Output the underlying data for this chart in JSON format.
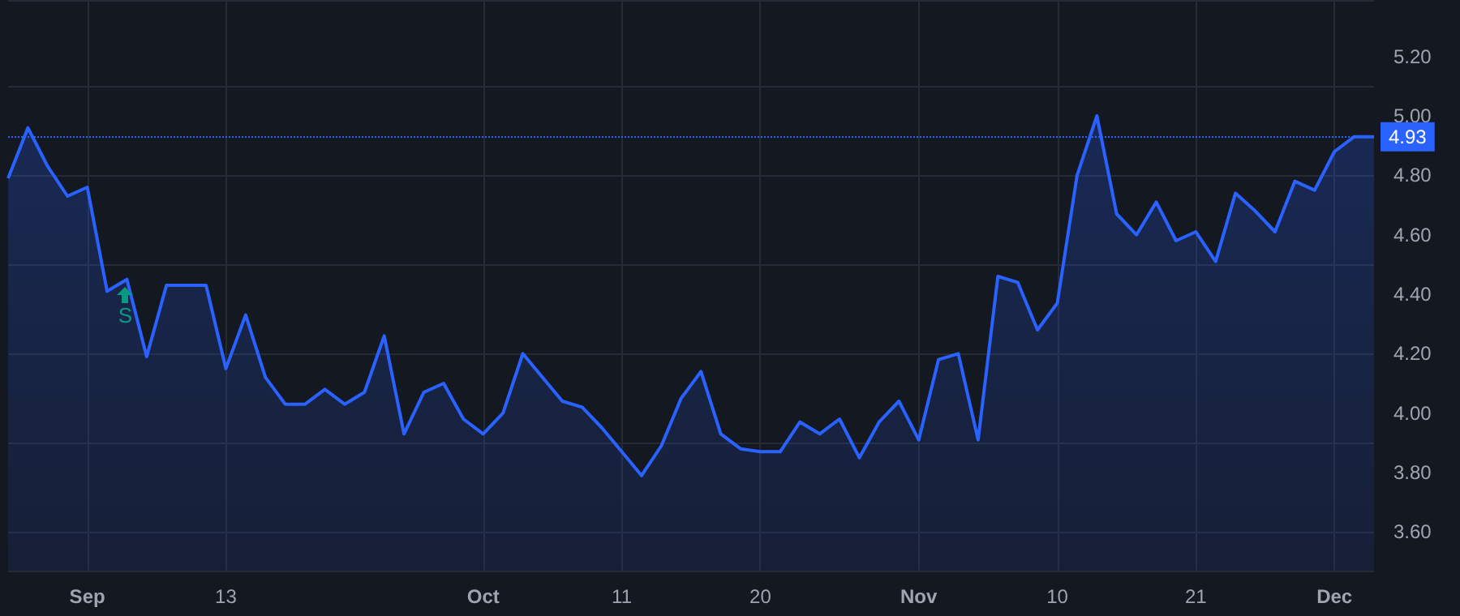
{
  "chart_data": {
    "type": "area",
    "categories": [
      null,
      null,
      null,
      null,
      "Sep",
      null,
      null,
      null,
      null,
      null,
      null,
      "13",
      null,
      null,
      null,
      null,
      null,
      null,
      null,
      null,
      null,
      null,
      null,
      null,
      "Oct",
      null,
      null,
      null,
      null,
      null,
      null,
      "11",
      null,
      null,
      null,
      null,
      null,
      null,
      "20",
      null,
      null,
      null,
      null,
      null,
      null,
      null,
      "Nov",
      null,
      null,
      null,
      null,
      null,
      null,
      "10",
      null,
      null,
      null,
      null,
      null,
      null,
      "21",
      null,
      null,
      null,
      null,
      null,
      null,
      "Dec",
      null,
      null
    ],
    "series": [
      {
        "color": "#2962ff",
        "values": [
          4.79,
          4.96,
          4.83,
          4.73,
          4.76,
          4.41,
          4.45,
          4.19,
          4.43,
          4.43,
          4.43,
          4.15,
          4.33,
          4.12,
          4.03,
          4.03,
          4.08,
          4.03,
          4.07,
          4.26,
          3.93,
          4.07,
          4.1,
          3.98,
          3.93,
          4.0,
          4.2,
          4.12,
          4.04,
          4.02,
          3.95,
          3.87,
          3.79,
          3.89,
          4.05,
          4.14,
          3.93,
          3.88,
          3.87,
          3.87,
          3.97,
          3.93,
          3.98,
          3.85,
          3.97,
          4.04,
          3.91,
          4.18,
          4.2,
          3.91,
          4.46,
          4.44,
          4.28,
          4.37,
          4.8,
          5.0,
          4.67,
          4.6,
          4.71,
          4.58,
          4.61,
          4.51,
          4.74,
          4.68,
          4.61,
          4.78,
          4.75,
          4.88,
          4.93,
          4.93
        ]
      }
    ],
    "ylim": [
      3.47,
      5.39
    ],
    "yticks": [
      {
        "value": 3.6,
        "label": "3.60"
      },
      {
        "value": 3.8,
        "label": "3.80"
      },
      {
        "value": 4.0,
        "label": "4.00"
      },
      {
        "value": 4.2,
        "label": "4.20"
      },
      {
        "value": 4.4,
        "label": "4.40"
      },
      {
        "value": 4.6,
        "label": "4.60"
      },
      {
        "value": 4.8,
        "label": "4.80"
      },
      {
        "value": 5.0,
        "label": "5.00"
      },
      {
        "value": 5.2,
        "label": "5.20"
      }
    ],
    "grid": true,
    "marker": "none",
    "line_style": "solid",
    "ref_lines": [
      {
        "axis": "y",
        "value": 4.93,
        "label": "4.93",
        "color": "#2962ff",
        "line_style": "dotted"
      }
    ],
    "annotations": [
      "S"
    ]
  }
}
